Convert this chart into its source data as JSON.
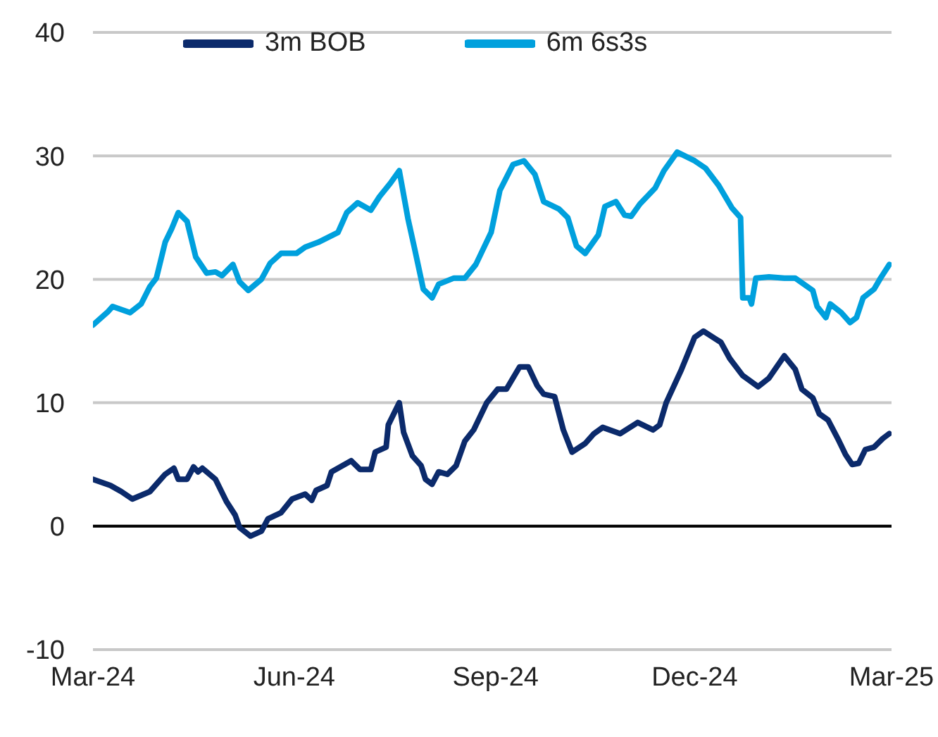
{
  "chart_data": {
    "type": "line",
    "legend": "top",
    "grid": "y",
    "marker": "none",
    "line_style": "solid",
    "xlim": [
      "2024-03-01",
      "2025-03-01"
    ],
    "xticks": [
      {
        "value": "2024-03-01",
        "label": "Mar-24"
      },
      {
        "value": "2024-06-01",
        "label": "Jun-24"
      },
      {
        "value": "2024-09-01",
        "label": "Sep-24"
      },
      {
        "value": "2024-12-01",
        "label": "Dec-24"
      },
      {
        "value": "2025-03-01",
        "label": "Mar-25"
      }
    ],
    "ylim": [
      -10,
      40
    ],
    "yticks": [
      -10,
      0,
      10,
      20,
      30,
      40
    ],
    "ref_lines": [
      {
        "axis": "y",
        "value": 0,
        "color": "#000000"
      }
    ],
    "series": [
      {
        "name": "3m BOB",
        "color": "#0b2a6b",
        "x": [
          "2024-03-01",
          "2024-03-09",
          "2024-03-14",
          "2024-03-19",
          "2024-03-27",
          "2024-04-03",
          "2024-04-07",
          "2024-04-09",
          "2024-04-13",
          "2024-04-16",
          "2024-04-18",
          "2024-04-20",
          "2024-04-26",
          "2024-05-01",
          "2024-05-05",
          "2024-05-07",
          "2024-05-12",
          "2024-05-17",
          "2024-05-20",
          "2024-05-26",
          "2024-05-31",
          "2024-06-06",
          "2024-06-09",
          "2024-06-11",
          "2024-06-16",
          "2024-06-18",
          "2024-06-23",
          "2024-06-27",
          "2024-07-01",
          "2024-07-06",
          "2024-07-08",
          "2024-07-13",
          "2024-07-14",
          "2024-07-19",
          "2024-07-21",
          "2024-07-25",
          "2024-07-29",
          "2024-07-31",
          "2024-08-03",
          "2024-08-06",
          "2024-08-10",
          "2024-08-14",
          "2024-08-18",
          "2024-08-22",
          "2024-08-28",
          "2024-09-02",
          "2024-09-06",
          "2024-09-12",
          "2024-09-16",
          "2024-09-20",
          "2024-09-23",
          "2024-09-28",
          "2024-10-02",
          "2024-10-06",
          "2024-10-12",
          "2024-10-16",
          "2024-10-20",
          "2024-10-28",
          "2024-11-05",
          "2024-11-12",
          "2024-11-15",
          "2024-11-18",
          "2024-11-25",
          "2024-12-01",
          "2024-12-05",
          "2024-12-13",
          "2024-12-17",
          "2024-12-23",
          "2024-12-30",
          "2025-01-04",
          "2025-01-11",
          "2025-01-16",
          "2025-01-19",
          "2025-01-24",
          "2025-01-27",
          "2025-01-31",
          "2025-02-05",
          "2025-02-08",
          "2025-02-11",
          "2025-02-14",
          "2025-02-17",
          "2025-02-21",
          "2025-02-25",
          "2025-02-28"
        ],
        "values": [
          3.8,
          3.3,
          2.8,
          2.2,
          2.8,
          4.2,
          4.7,
          3.8,
          3.8,
          4.8,
          4.4,
          4.7,
          3.8,
          2.0,
          0.9,
          -0.1,
          -0.8,
          -0.4,
          0.6,
          1.1,
          2.2,
          2.6,
          2.1,
          2.9,
          3.3,
          4.4,
          4.9,
          5.3,
          4.6,
          4.6,
          6.0,
          6.4,
          8.2,
          10.0,
          7.6,
          5.7,
          4.9,
          3.8,
          3.4,
          4.4,
          4.2,
          4.9,
          6.9,
          7.8,
          10.0,
          11.1,
          11.1,
          12.9,
          12.9,
          11.4,
          10.7,
          10.5,
          7.8,
          6.0,
          6.7,
          7.5,
          8.0,
          7.5,
          8.4,
          7.8,
          8.2,
          10.0,
          12.7,
          15.3,
          15.8,
          14.9,
          13.6,
          12.2,
          11.3,
          12.0,
          13.8,
          12.7,
          11.1,
          10.4,
          9.1,
          8.6,
          6.9,
          5.8,
          5.0,
          5.1,
          6.2,
          6.4,
          7.1,
          7.5
        ]
      },
      {
        "name": "6m 6s3s",
        "color": "#00a0dd",
        "x": [
          "2024-03-01",
          "2024-03-08",
          "2024-03-10",
          "2024-03-18",
          "2024-03-23",
          "2024-03-27",
          "2024-03-30",
          "2024-04-03",
          "2024-04-06",
          "2024-04-09",
          "2024-04-13",
          "2024-04-17",
          "2024-04-22",
          "2024-04-26",
          "2024-04-29",
          "2024-05-04",
          "2024-05-07",
          "2024-05-11",
          "2024-05-17",
          "2024-05-21",
          "2024-05-26",
          "2024-06-02",
          "2024-06-06",
          "2024-06-12",
          "2024-06-21",
          "2024-06-25",
          "2024-06-30",
          "2024-07-06",
          "2024-07-10",
          "2024-07-15",
          "2024-07-19",
          "2024-07-23",
          "2024-07-26",
          "2024-07-30",
          "2024-08-03",
          "2024-08-06",
          "2024-08-13",
          "2024-08-18",
          "2024-08-23",
          "2024-08-30",
          "2024-09-03",
          "2024-09-09",
          "2024-09-14",
          "2024-09-19",
          "2024-09-23",
          "2024-09-30",
          "2024-10-04",
          "2024-10-08",
          "2024-10-12",
          "2024-10-18",
          "2024-10-21",
          "2024-10-26",
          "2024-10-30",
          "2024-11-02",
          "2024-11-06",
          "2024-11-13",
          "2024-11-17",
          "2024-11-23",
          "2024-12-01",
          "2024-12-06",
          "2024-12-12",
          "2024-12-18",
          "2024-12-22",
          "2024-12-23",
          "2024-12-26",
          "2024-12-27",
          "2024-12-29",
          "2025-01-04",
          "2025-01-11",
          "2025-01-16",
          "2025-01-24",
          "2025-01-26",
          "2025-01-30",
          "2025-02-01",
          "2025-02-06",
          "2025-02-10",
          "2025-02-13",
          "2025-02-16",
          "2025-02-21",
          "2025-02-24",
          "2025-02-28"
        ],
        "values": [
          16.3,
          17.4,
          17.8,
          17.3,
          18.0,
          19.4,
          20.1,
          23.0,
          24.1,
          25.4,
          24.7,
          21.8,
          20.5,
          20.6,
          20.3,
          21.2,
          19.8,
          19.1,
          20.0,
          21.3,
          22.1,
          22.1,
          22.6,
          23.0,
          23.8,
          25.4,
          26.2,
          25.6,
          26.7,
          27.8,
          28.8,
          24.9,
          22.5,
          19.2,
          18.5,
          19.6,
          20.1,
          20.1,
          21.2,
          23.8,
          27.2,
          29.3,
          29.6,
          28.5,
          26.3,
          25.7,
          25.0,
          22.7,
          22.1,
          23.6,
          25.9,
          26.3,
          25.2,
          25.1,
          26.1,
          27.4,
          28.8,
          30.3,
          29.6,
          29.0,
          27.6,
          25.8,
          25.0,
          18.5,
          18.5,
          18.0,
          20.1,
          20.2,
          20.1,
          20.1,
          19.1,
          17.8,
          16.9,
          18.0,
          17.3,
          16.5,
          16.9,
          18.5,
          19.2,
          20.1,
          21.2
        ]
      }
    ]
  }
}
